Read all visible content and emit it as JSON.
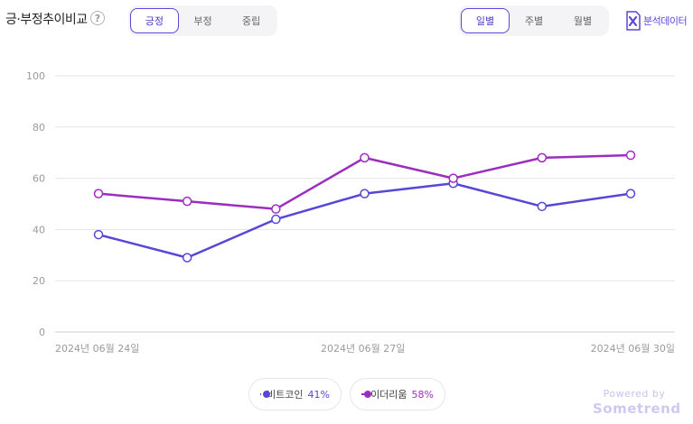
{
  "header": {
    "title": "긍·부정추이비교",
    "help_glyph": "?"
  },
  "sentiment_tabs": [
    {
      "label": "긍정",
      "active": true
    },
    {
      "label": "부정",
      "active": false
    },
    {
      "label": "중립",
      "active": false
    }
  ],
  "period_tabs": [
    {
      "label": "일별",
      "active": true
    },
    {
      "label": "주별",
      "active": false
    },
    {
      "label": "월별",
      "active": false
    }
  ],
  "export": {
    "label": "분석데이터",
    "icon": "excel-icon"
  },
  "colors": {
    "accent": "#5b47d4",
    "series_1": "#5747d6",
    "series_2": "#9b2dbf",
    "grid": "#e5e5e5"
  },
  "chart_data": {
    "type": "line",
    "x": [
      "2024-06-24",
      "2024-06-25",
      "2024-06-26",
      "2024-06-27",
      "2024-06-28",
      "2024-06-29",
      "2024-06-30"
    ],
    "x_tick_labels": [
      "2024년 06월 24일",
      "2024년 06월 27일",
      "2024년 06월 30일"
    ],
    "ylim": [
      0,
      100
    ],
    "y_ticks": [
      0,
      20,
      40,
      60,
      80,
      100
    ],
    "grid": true,
    "series": [
      {
        "name": "비트코인",
        "share": "41%",
        "values": [
          38,
          29,
          44,
          54,
          58,
          49,
          54
        ]
      },
      {
        "name": "이더리움",
        "share": "58%",
        "values": [
          54,
          51,
          48,
          68,
          60,
          68,
          69
        ]
      }
    ]
  },
  "footer": {
    "powered_by": "Powered by",
    "brand": "Sometrend"
  }
}
